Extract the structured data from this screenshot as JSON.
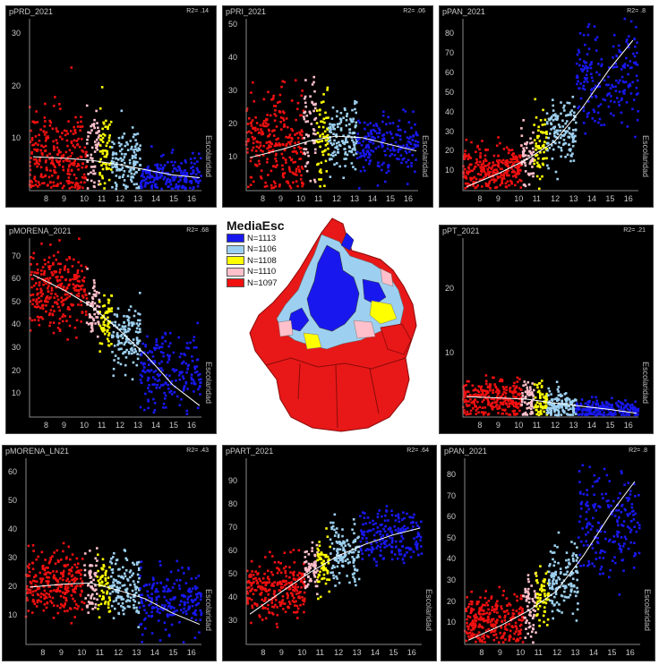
{
  "colors": {
    "band1": "#f01010",
    "band2": "#ffc0cb",
    "band3": "#ffff00",
    "band4": "#9dd0f0",
    "band5": "#1818ee",
    "fit": "#ffffff",
    "panel_bg": "#000000"
  },
  "legend": {
    "title": "MediaEsc",
    "items": [
      {
        "label": "N=1113",
        "color": "#1818ee"
      },
      {
        "label": "N=1106",
        "color": "#9dd0f0"
      },
      {
        "label": "N=1108",
        "color": "#ffff00"
      },
      {
        "label": "N=1110",
        "color": "#ffc0cb"
      },
      {
        "label": "N=1097",
        "color": "#f01010"
      }
    ]
  },
  "map": {
    "icon": "mexico-city-map-icon"
  },
  "chart_data": [
    {
      "type": "scatter",
      "title": "pPRD_2021",
      "r2": "R2= .14",
      "xlabel": "Escolaridad",
      "xlim": [
        7,
        16.6
      ],
      "ylim": [
        0,
        33
      ],
      "xticks": [
        "8",
        "9",
        "10",
        "11",
        "12",
        "13",
        "14",
        "15",
        "16"
      ],
      "yticks": [
        "10",
        "20",
        "30"
      ],
      "fit": [
        [
          7.2,
          6.5
        ],
        [
          9,
          6.2
        ],
        [
          10.5,
          5.8
        ],
        [
          12,
          5
        ],
        [
          13.5,
          4
        ],
        [
          15,
          3
        ],
        [
          16.5,
          2.5
        ]
      ],
      "band_stats": [
        [
          6.5,
          4.5
        ],
        [
          7.5,
          4.5
        ],
        [
          7,
          4
        ],
        [
          5.5,
          3
        ],
        [
          2.8,
          1.8
        ]
      ]
    },
    {
      "type": "scatter",
      "title": "pPRI_2021",
      "r2": "R2= .06",
      "xlabel": "Escolaridad",
      "xlim": [
        7,
        16.6
      ],
      "ylim": [
        0,
        52
      ],
      "xticks": [
        "8",
        "9",
        "10",
        "11",
        "12",
        "13",
        "14",
        "15",
        "16"
      ],
      "yticks": [
        "10",
        "20",
        "30",
        "40",
        "50"
      ],
      "fit": [
        [
          7.2,
          10
        ],
        [
          9,
          12.5
        ],
        [
          10.5,
          15
        ],
        [
          12,
          16.5
        ],
        [
          13.5,
          16
        ],
        [
          15,
          14
        ],
        [
          16.5,
          12
        ]
      ],
      "band_stats": [
        [
          14,
          8
        ],
        [
          18,
          8
        ],
        [
          17,
          7
        ],
        [
          16,
          5
        ],
        [
          14,
          4
        ]
      ]
    },
    {
      "type": "scatter",
      "title": "pPAN_2021",
      "r2": "R2= .8",
      "xlabel": "Escolaridad",
      "xlim": [
        7,
        16.6
      ],
      "ylim": [
        0,
        88
      ],
      "xticks": [
        "8",
        "9",
        "10",
        "11",
        "12",
        "13",
        "14",
        "15",
        "16"
      ],
      "yticks": [
        "10",
        "20",
        "30",
        "40",
        "50",
        "60",
        "70",
        "80"
      ],
      "fit": [
        [
          7.2,
          2
        ],
        [
          9,
          9
        ],
        [
          10.5,
          16
        ],
        [
          12,
          25
        ],
        [
          13.5,
          42
        ],
        [
          15,
          62
        ],
        [
          16.3,
          77
        ]
      ],
      "band_stats": [
        [
          11,
          6
        ],
        [
          18,
          7
        ],
        [
          23,
          7
        ],
        [
          30,
          8
        ],
        [
          58,
          13
        ]
      ]
    },
    {
      "type": "scatter",
      "title": "pMORENA_2021",
      "r2": "R2= .68",
      "xlabel": "Escolaridad",
      "xlim": [
        7,
        16.6
      ],
      "ylim": [
        0,
        78
      ],
      "xticks": [
        "8",
        "9",
        "10",
        "11",
        "12",
        "13",
        "14",
        "15",
        "16"
      ],
      "yticks": [
        "10",
        "20",
        "30",
        "40",
        "50",
        "60",
        "70"
      ],
      "fit": [
        [
          7.2,
          62
        ],
        [
          9,
          55
        ],
        [
          10.5,
          48
        ],
        [
          12,
          38
        ],
        [
          13.5,
          27
        ],
        [
          15,
          14
        ],
        [
          16.5,
          5
        ]
      ],
      "band_stats": [
        [
          55,
          8
        ],
        [
          47,
          7
        ],
        [
          42,
          7
        ],
        [
          35,
          7
        ],
        [
          20,
          8
        ]
      ]
    },
    {
      "type": "scatter",
      "title": "pPT_2021",
      "r2": "R2= .21",
      "xlabel": "Escolaridad",
      "xlim": [
        7,
        16.6
      ],
      "ylim": [
        0,
        28
      ],
      "xticks": [
        "8",
        "9",
        "10",
        "11",
        "12",
        "13",
        "14",
        "15",
        "16"
      ],
      "yticks": [
        "10",
        "20"
      ],
      "fit": [
        [
          7.2,
          3.2
        ],
        [
          9,
          3
        ],
        [
          10.5,
          2.8
        ],
        [
          12,
          2.2
        ],
        [
          13.5,
          1.7
        ],
        [
          15,
          1.2
        ],
        [
          16.5,
          0.6
        ]
      ],
      "band_stats": [
        [
          3,
          1.5
        ],
        [
          2.8,
          1.6
        ],
        [
          2.6,
          1.5
        ],
        [
          2,
          1.1
        ],
        [
          1.2,
          0.8
        ]
      ]
    },
    {
      "type": "scatter",
      "title": "pMORENA_LN21",
      "r2": "R2= .43",
      "xlabel": "Escolaridad",
      "xlim": [
        7,
        16.6
      ],
      "ylim": [
        0,
        65
      ],
      "xticks": [
        "8",
        "9",
        "10",
        "11",
        "12",
        "13",
        "14",
        "15",
        "16"
      ],
      "yticks": [
        "10",
        "20",
        "30",
        "40",
        "50",
        "60"
      ],
      "fit": [
        [
          7.2,
          20
        ],
        [
          9,
          21
        ],
        [
          10.5,
          21.5
        ],
        [
          12,
          19
        ],
        [
          13.5,
          16
        ],
        [
          15,
          11
        ],
        [
          16.5,
          7
        ]
      ],
      "band_stats": [
        [
          21,
          5
        ],
        [
          22,
          5
        ],
        [
          22,
          5
        ],
        [
          20,
          5
        ],
        [
          15,
          5
        ]
      ]
    },
    {
      "type": "scatter",
      "title": "pPART_2021",
      "r2": "R2= .64",
      "xlabel": "Escolaridad",
      "xlim": [
        7,
        16.6
      ],
      "ylim": [
        20,
        100
      ],
      "xticks": [
        "8",
        "9",
        "10",
        "11",
        "12",
        "13",
        "14",
        "15",
        "16"
      ],
      "yticks": [
        "30",
        "40",
        "50",
        "60",
        "70",
        "80",
        "90"
      ],
      "fit": [
        [
          7.2,
          33
        ],
        [
          9,
          43
        ],
        [
          10.5,
          51
        ],
        [
          12,
          58
        ],
        [
          13.5,
          63
        ],
        [
          15,
          67
        ],
        [
          16.5,
          70
        ]
      ],
      "band_stats": [
        [
          44,
          6
        ],
        [
          52,
          6
        ],
        [
          55,
          6
        ],
        [
          59,
          6
        ],
        [
          66,
          6
        ]
      ]
    },
    {
      "type": "scatter",
      "title": "pPAN_2021",
      "r2": "R2= .8",
      "xlabel": "Escolaridad",
      "xlim": [
        7,
        16.6
      ],
      "ylim": [
        0,
        88
      ],
      "xticks": [
        "8",
        "9",
        "10",
        "11",
        "12",
        "13",
        "14",
        "15",
        "16"
      ],
      "yticks": [
        "10",
        "20",
        "30",
        "40",
        "50",
        "60",
        "70",
        "80"
      ],
      "fit": [
        [
          7.2,
          2
        ],
        [
          9,
          9
        ],
        [
          10.5,
          16
        ],
        [
          12,
          25
        ],
        [
          13.5,
          42
        ],
        [
          15,
          62
        ],
        [
          16.3,
          77
        ]
      ],
      "band_stats": [
        [
          11,
          6
        ],
        [
          18,
          7
        ],
        [
          23,
          7
        ],
        [
          30,
          8
        ],
        [
          58,
          13
        ]
      ]
    }
  ]
}
